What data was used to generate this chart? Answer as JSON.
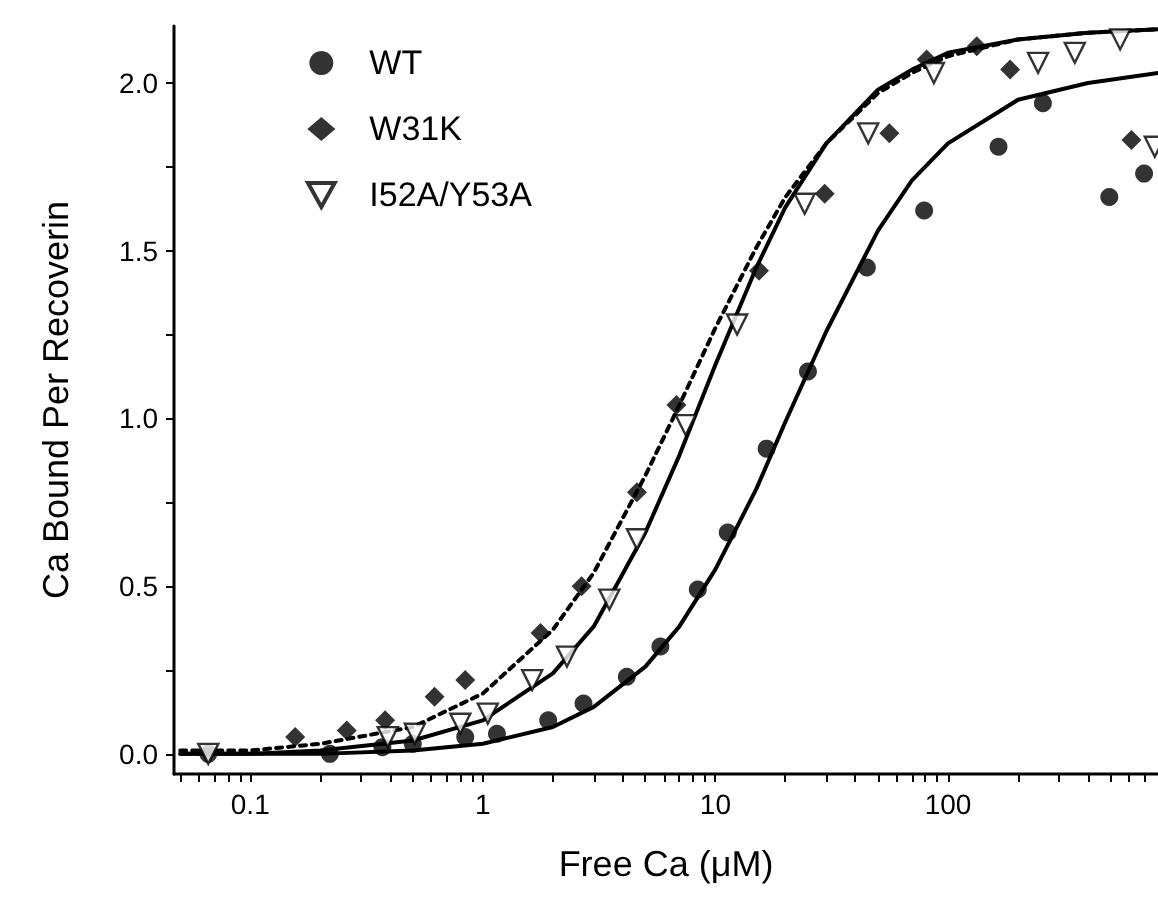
{
  "chart_data": {
    "type": "scatter",
    "xlabel": "Free Ca (μM)",
    "ylabel": "Ca Bound Per Recoverin",
    "log": "x",
    "grid": false,
    "legend": "top left",
    "xlim": [
      0.047,
      800
    ],
    "xticks": [
      {
        "value": 0.05,
        "label": null
      },
      {
        "value": 0.06,
        "label": null
      },
      {
        "value": 0.07,
        "label": null
      },
      {
        "value": 0.08,
        "label": null
      },
      {
        "value": 0.09,
        "label": null
      },
      {
        "value": 0.1,
        "label": "0.1"
      },
      {
        "value": 0.2,
        "label": null
      },
      {
        "value": 0.3,
        "label": null
      },
      {
        "value": 0.4,
        "label": null
      },
      {
        "value": 0.5,
        "label": null
      },
      {
        "value": 0.6,
        "label": null
      },
      {
        "value": 0.7,
        "label": null
      },
      {
        "value": 0.8,
        "label": null
      },
      {
        "value": 0.9,
        "label": null
      },
      1,
      {
        "value": 2,
        "label": null
      },
      {
        "value": 3,
        "label": null
      },
      {
        "value": 4,
        "label": null
      },
      {
        "value": 5,
        "label": null
      },
      {
        "value": 6,
        "label": null
      },
      {
        "value": 7,
        "label": null
      },
      {
        "value": 8,
        "label": null
      },
      {
        "value": 9,
        "label": null
      },
      10,
      {
        "value": 20,
        "label": null
      },
      {
        "value": 30,
        "label": null
      },
      {
        "value": 40,
        "label": null
      },
      {
        "value": 50,
        "label": null
      },
      {
        "value": 60,
        "label": null
      },
      {
        "value": 70,
        "label": null
      },
      {
        "value": 80,
        "label": null
      },
      {
        "value": 90,
        "label": null
      },
      100,
      {
        "value": 200,
        "label": null
      },
      {
        "value": 300,
        "label": null
      },
      {
        "value": 400,
        "label": null
      },
      {
        "value": 500,
        "label": null
      },
      {
        "value": 600,
        "label": null
      },
      {
        "value": 700,
        "label": null
      },
      {
        "value": 800,
        "label": null
      }
    ],
    "ylim": [
      -0.06,
      2.17
    ],
    "yticks": [
      {
        "value": 0,
        "label": "0.0"
      },
      {
        "value": 0.25,
        "label": null
      },
      {
        "value": 0.5,
        "label": "0.5"
      },
      {
        "value": 0.75,
        "label": null
      },
      {
        "value": 1,
        "label": "1.0"
      },
      {
        "value": 1.25,
        "label": null
      },
      {
        "value": 1.5,
        "label": "1.5"
      },
      {
        "value": 1.75,
        "label": null
      },
      {
        "value": 2,
        "label": "2.0"
      }
    ],
    "series": [
      {
        "name": "WT",
        "marker": "circle",
        "color": "#000000",
        "x": [
          0.066,
          0.22,
          0.37,
          0.5,
          0.84,
          1.15,
          1.91,
          2.71,
          4.16,
          5.8,
          8.4,
          11.3,
          16.6,
          25,
          44.8,
          79,
          165,
          256,
          494,
          697
        ],
        "values": [
          0.0,
          0.0,
          0.02,
          0.03,
          0.05,
          0.06,
          0.1,
          0.15,
          0.23,
          0.32,
          0.49,
          0.66,
          0.91,
          1.14,
          1.45,
          1.62,
          1.81,
          1.94,
          1.66,
          1.73
        ]
      },
      {
        "name": "W31K",
        "marker": "diamond",
        "color": "#000000",
        "x": [
          0.156,
          0.26,
          0.38,
          0.62,
          0.84,
          1.77,
          2.66,
          4.6,
          6.8,
          15.4,
          29.5,
          56,
          81,
          133,
          185,
          615
        ],
        "values": [
          0.05,
          0.07,
          0.1,
          0.17,
          0.22,
          0.36,
          0.5,
          0.78,
          1.04,
          1.44,
          1.67,
          1.85,
          2.07,
          2.11,
          2.04,
          1.83
        ]
      },
      {
        "name": "I52A/Y53A",
        "marker": "triangle",
        "color": "#000000",
        "x": [
          0.066,
          0.39,
          0.51,
          0.8,
          1.05,
          1.63,
          2.3,
          3.5,
          4.6,
          7.45,
          12.4,
          24.2,
          45.4,
          87,
          244,
          351,
          550,
          775
        ],
        "values": [
          0.0,
          0.05,
          0.06,
          0.09,
          0.12,
          0.22,
          0.29,
          0.46,
          0.64,
          0.98,
          1.28,
          1.64,
          1.85,
          2.03,
          2.06,
          2.09,
          2.13,
          1.81
        ]
      },
      {
        "type": "line",
        "marker": "none",
        "line_style": "solid",
        "color": "#000000",
        "x": [
          0.05,
          0.1,
          0.2,
          0.5,
          1,
          2,
          3,
          5,
          7,
          10,
          15,
          20,
          30,
          50,
          70,
          100,
          200,
          400,
          800
        ],
        "values": [
          0.0,
          0.0,
          0.0,
          0.01,
          0.03,
          0.08,
          0.14,
          0.26,
          0.38,
          0.55,
          0.79,
          0.99,
          1.26,
          1.56,
          1.71,
          1.82,
          1.95,
          2.0,
          2.03
        ]
      },
      {
        "type": "line",
        "marker": "none",
        "line_style": "dotted",
        "color": "#000000",
        "x": [
          0.05,
          0.1,
          0.2,
          0.5,
          1,
          2,
          3,
          5,
          7,
          10,
          15,
          20,
          30,
          50,
          70,
          100,
          200,
          400,
          800
        ],
        "values": [
          0.01,
          0.01,
          0.03,
          0.08,
          0.18,
          0.37,
          0.54,
          0.83,
          1.04,
          1.27,
          1.51,
          1.66,
          1.82,
          1.97,
          2.03,
          2.08,
          2.13,
          2.15,
          2.16
        ]
      },
      {
        "type": "line",
        "marker": "none",
        "line_style": "solid",
        "color": "#000000",
        "x": [
          0.05,
          0.1,
          0.2,
          0.5,
          1,
          2,
          3,
          5,
          7,
          10,
          15,
          20,
          30,
          50,
          70,
          100,
          200,
          400,
          800
        ],
        "values": [
          0.0,
          0.0,
          0.01,
          0.04,
          0.1,
          0.24,
          0.38,
          0.66,
          0.89,
          1.16,
          1.45,
          1.63,
          1.82,
          1.98,
          2.04,
          2.09,
          2.13,
          2.15,
          2.16
        ]
      }
    ]
  }
}
